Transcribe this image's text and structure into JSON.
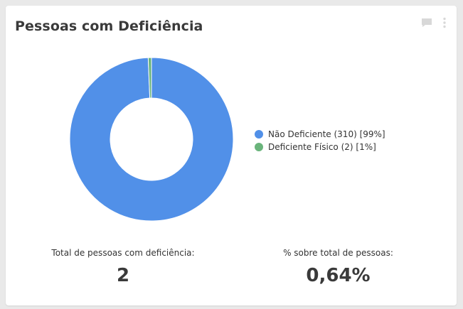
{
  "card": {
    "title": "Pessoas com Deficiência"
  },
  "toolbar": {
    "icons": [
      "comment-icon",
      "more-vertical-icon"
    ],
    "icon_color": "#d8d8d8"
  },
  "legend": {
    "items": [
      {
        "label": "Não Deficiente (310) [99%]",
        "color": "#5190e8"
      },
      {
        "label": "Deficiente Físico (2) [1%]",
        "color": "#6ab47b"
      }
    ]
  },
  "chart_data": {
    "type": "pie",
    "categories": [
      "Não Deficiente",
      "Deficiente Físico"
    ],
    "values": [
      310,
      2
    ],
    "percent_labels": [
      "99%",
      "1%"
    ],
    "colors": [
      "#5190e8",
      "#6ab47b"
    ],
    "donut": true,
    "legend_position": "right"
  },
  "stats": {
    "total_label": "Total de pessoas com deficiência:",
    "total_value": "2",
    "percent_label": "% sobre total de pessoas:",
    "percent_value": "0,64%"
  }
}
